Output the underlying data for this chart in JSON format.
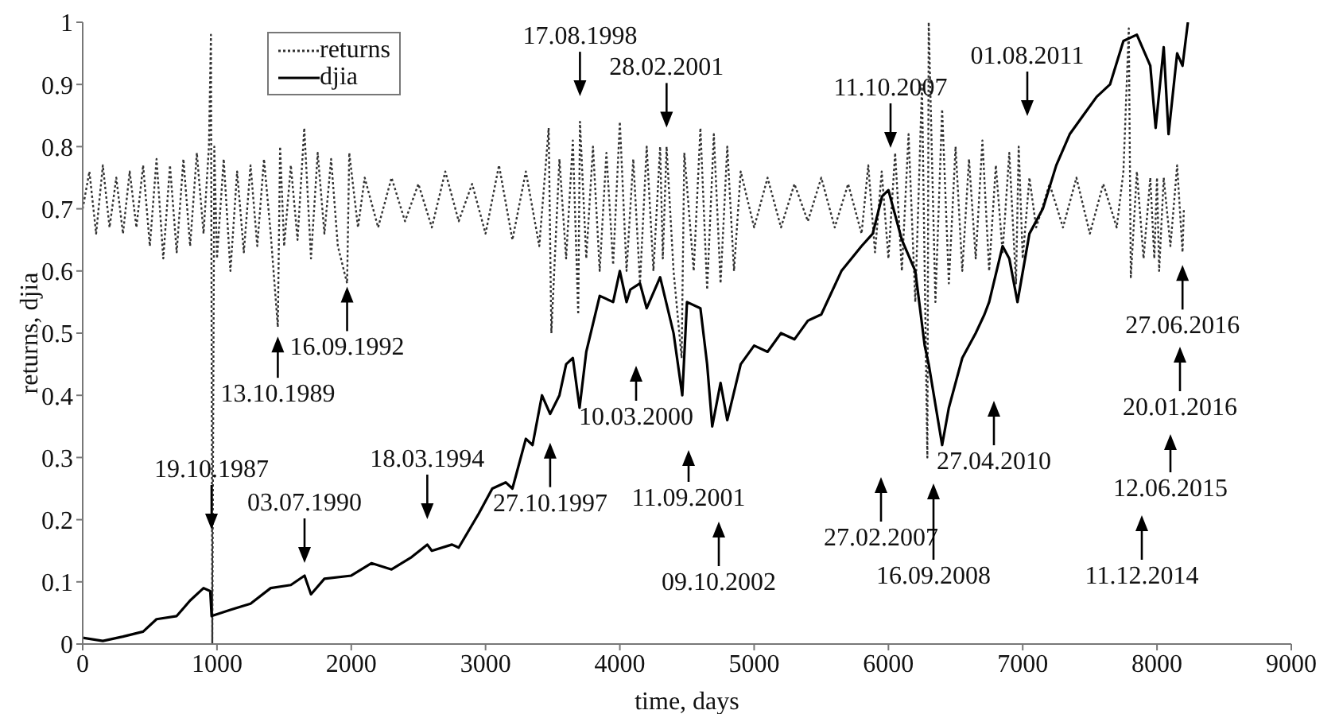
{
  "chart_data": {
    "type": "line",
    "xlabel": "time, days",
    "ylabel": "returns, djia",
    "xlim": [
      0,
      9000
    ],
    "ylim": [
      0,
      1
    ],
    "xticks": [
      0,
      1000,
      2000,
      3000,
      4000,
      5000,
      6000,
      7000,
      8000,
      9000
    ],
    "yticks": [
      0,
      0.1,
      0.2,
      0.3,
      0.4,
      0.5,
      0.6,
      0.7,
      0.8,
      0.9,
      1
    ],
    "legend": "top left",
    "marker": "none",
    "series": [
      {
        "name": "returns",
        "color": "#333333",
        "line_style": "dotted",
        "x": [
          0,
          50,
          100,
          150,
          200,
          250,
          300,
          350,
          400,
          450,
          500,
          550,
          600,
          650,
          700,
          750,
          800,
          850,
          900,
          940,
          955,
          965,
          980,
          1000,
          1050,
          1100,
          1150,
          1200,
          1250,
          1300,
          1350,
          1400,
          1453,
          1470,
          1500,
          1550,
          1600,
          1650,
          1700,
          1750,
          1800,
          1850,
          1900,
          1969,
          1985,
          2050,
          2100,
          2200,
          2300,
          2400,
          2500,
          2600,
          2700,
          2800,
          2900,
          3000,
          3100,
          3200,
          3300,
          3400,
          3470,
          3490,
          3550,
          3600,
          3650,
          3690,
          3703,
          3750,
          3800,
          3850,
          3900,
          3950,
          4000,
          4050,
          4100,
          4150,
          4200,
          4250,
          4300,
          4320,
          4348,
          4400,
          4460,
          4480,
          4550,
          4600,
          4650,
          4700,
          4750,
          4800,
          4850,
          4900,
          5000,
          5100,
          5200,
          5300,
          5400,
          5500,
          5600,
          5700,
          5800,
          5850,
          5900,
          5950,
          6000,
          6050,
          6100,
          6150,
          6200,
          6250,
          6290,
          6300,
          6350,
          6400,
          6450,
          6500,
          6550,
          6600,
          6650,
          6700,
          6750,
          6800,
          6850,
          6900,
          6950,
          6970,
          7000,
          7050,
          7100,
          7200,
          7300,
          7400,
          7500,
          7600,
          7700,
          7750,
          7790,
          7805,
          7850,
          7900,
          7950,
          7980,
          8000,
          8016,
          8050,
          8100,
          8150,
          8190,
          8200
        ],
        "values": [
          0.7,
          0.76,
          0.66,
          0.77,
          0.67,
          0.75,
          0.66,
          0.76,
          0.67,
          0.77,
          0.64,
          0.78,
          0.62,
          0.77,
          0.63,
          0.78,
          0.64,
          0.79,
          0.66,
          0.8,
          0.98,
          0,
          0.8,
          0.62,
          0.78,
          0.6,
          0.76,
          0.63,
          0.77,
          0.64,
          0.78,
          0.66,
          0.51,
          0.8,
          0.64,
          0.77,
          0.65,
          0.83,
          0.62,
          0.79,
          0.66,
          0.78,
          0.64,
          0.58,
          0.79,
          0.67,
          0.75,
          0.67,
          0.75,
          0.68,
          0.74,
          0.67,
          0.76,
          0.68,
          0.74,
          0.66,
          0.77,
          0.65,
          0.76,
          0.64,
          0.83,
          0.5,
          0.78,
          0.62,
          0.81,
          0.53,
          0.84,
          0.62,
          0.8,
          0.6,
          0.79,
          0.61,
          0.84,
          0.6,
          0.78,
          0.58,
          0.8,
          0.6,
          0.8,
          0.62,
          0.8,
          0.6,
          0.46,
          0.79,
          0.6,
          0.83,
          0.57,
          0.82,
          0.58,
          0.8,
          0.6,
          0.76,
          0.67,
          0.75,
          0.67,
          0.74,
          0.68,
          0.75,
          0.67,
          0.74,
          0.66,
          0.77,
          0.63,
          0.76,
          0.62,
          0.79,
          0.6,
          0.82,
          0.55,
          0.9,
          0.3,
          1,
          0.55,
          0.86,
          0.58,
          0.8,
          0.6,
          0.78,
          0.62,
          0.81,
          0.6,
          0.77,
          0.63,
          0.79,
          0.58,
          0.8,
          0.62,
          0.75,
          0.67,
          0.74,
          0.67,
          0.75,
          0.66,
          0.74,
          0.67,
          0.76,
          0.99,
          0.59,
          0.76,
          0.62,
          0.75,
          0.62,
          0.75,
          0.6,
          0.75,
          0.64,
          0.77,
          0.63,
          0.7
        ]
      },
      {
        "name": "djia",
        "color": "#000000",
        "line_style": "solid",
        "x": [
          0,
          150,
          300,
          450,
          550,
          700,
          800,
          900,
          950,
          960,
          1100,
          1250,
          1400,
          1550,
          1652,
          1700,
          1800,
          2000,
          2150,
          2300,
          2450,
          2566,
          2600,
          2750,
          2800,
          2950,
          3050,
          3150,
          3200,
          3300,
          3350,
          3420,
          3481,
          3550,
          3600,
          3650,
          3700,
          3750,
          3850,
          3950,
          4000,
          4050,
          4078,
          4150,
          4200,
          4300,
          4400,
          4465,
          4500,
          4600,
          4650,
          4688,
          4750,
          4800,
          4900,
          5000,
          5100,
          5200,
          5300,
          5400,
          5500,
          5650,
          5800,
          5883,
          5953,
          6000,
          6100,
          6200,
          6270,
          6300,
          6400,
          6450,
          6550,
          6650,
          6715,
          6750,
          6850,
          6900,
          6961,
          7050,
          7150,
          7250,
          7350,
          7450,
          7550,
          7650,
          7750,
          7850,
          7950,
          7990,
          8050,
          8086,
          8150,
          8190,
          8230
        ],
        "values": [
          0.01,
          0.005,
          0.012,
          0.02,
          0.04,
          0.045,
          0.07,
          0.09,
          0.085,
          0.045,
          0.055,
          0.065,
          0.09,
          0.095,
          0.11,
          0.08,
          0.105,
          0.11,
          0.13,
          0.12,
          0.14,
          0.16,
          0.15,
          0.16,
          0.155,
          0.21,
          0.25,
          0.26,
          0.25,
          0.33,
          0.32,
          0.4,
          0.37,
          0.4,
          0.45,
          0.46,
          0.38,
          0.47,
          0.56,
          0.55,
          0.6,
          0.55,
          0.57,
          0.58,
          0.54,
          0.59,
          0.5,
          0.4,
          0.55,
          0.54,
          0.45,
          0.35,
          0.42,
          0.36,
          0.45,
          0.48,
          0.47,
          0.5,
          0.49,
          0.52,
          0.53,
          0.6,
          0.64,
          0.66,
          0.72,
          0.73,
          0.65,
          0.6,
          0.48,
          0.45,
          0.32,
          0.38,
          0.46,
          0.5,
          0.53,
          0.55,
          0.64,
          0.62,
          0.55,
          0.66,
          0.7,
          0.77,
          0.82,
          0.85,
          0.88,
          0.9,
          0.97,
          0.98,
          0.93,
          0.83,
          0.96,
          0.82,
          0.95,
          0.93,
          1
        ]
      }
    ],
    "annotations": [
      "19.10.1987",
      {
        "text": "03.07.1990",
        "x": 1652,
        "y": 0.11
      },
      {
        "text": "18.03.1994",
        "x": 2566,
        "y": 0.16
      },
      {
        "text": "27.10.1997",
        "x": 3481,
        "y": 0.37
      },
      {
        "text": "13.10.1989",
        "x": 1453,
        "y": 0.51
      },
      {
        "text": "16.09.1992",
        "x": 1969,
        "y": 0.58
      },
      {
        "text": "17.08.1998",
        "x": 3703,
        "y": 0.84
      },
      {
        "text": "28.02.2001",
        "x": 4348,
        "y": 0.8
      },
      "10.03.2000",
      "11.09.2001",
      "09.10.2002",
      "27.02.2007",
      "16.09.2008",
      "27.04.2010",
      "11.10.2007",
      "01.08.2011",
      {
        "text": "27.06.2016",
        "x": 8190,
        "y": 0.63
      },
      "20.01.2016",
      "12.06.2015",
      "11.12.2014"
    ]
  }
}
